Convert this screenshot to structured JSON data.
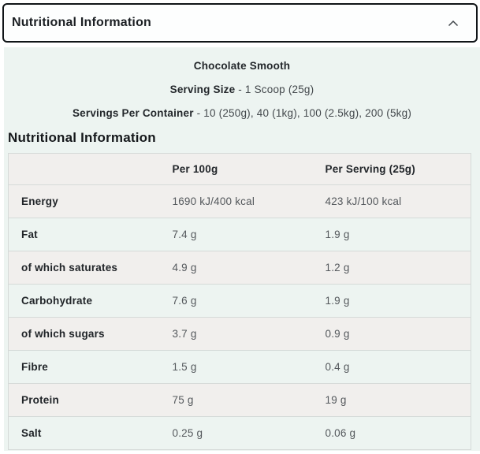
{
  "accordion": {
    "title": "Nutritional Information",
    "chevron_icon": "chevron-up"
  },
  "panel": {
    "flavour": "Chocolate Smooth",
    "serving_size_label": "Serving Size",
    "serving_size_value": "- 1 Scoop (25g)",
    "servings_per_container_label": "Servings Per Container",
    "servings_per_container_value": "- 10 (250g), 40 (1kg), 100 (2.5kg), 200 (5kg)",
    "section_heading": "Nutritional Information"
  },
  "table": {
    "columns": [
      "",
      "Per 100g",
      "Per Serving (25g)"
    ],
    "rows": [
      {
        "label": "Energy",
        "per100g": "1690 kJ/400 kcal",
        "perServing": "423 kJ/100 kcal"
      },
      {
        "label": "Fat",
        "per100g": "7.4 g",
        "perServing": "1.9 g"
      },
      {
        "label": "of which saturates",
        "per100g": "4.9 g",
        "perServing": "1.2 g"
      },
      {
        "label": "Carbohydrate",
        "per100g": "7.6 g",
        "perServing": "1.9 g"
      },
      {
        "label": "of which sugars",
        "per100g": "3.7 g",
        "perServing": "0.9 g"
      },
      {
        "label": "Fibre",
        "per100g": "1.5 g",
        "perServing": "0.4 g"
      },
      {
        "label": "Protein",
        "per100g": "75 g",
        "perServing": "19 g"
      },
      {
        "label": "Salt",
        "per100g": "0.25 g",
        "perServing": "0.06 g"
      }
    ]
  },
  "colors": {
    "panel_background": "#edf4f1",
    "row_shade": "#f1efed",
    "table_border": "#d5dad8",
    "accordion_border": "#101417",
    "value_text": "#54585c"
  }
}
